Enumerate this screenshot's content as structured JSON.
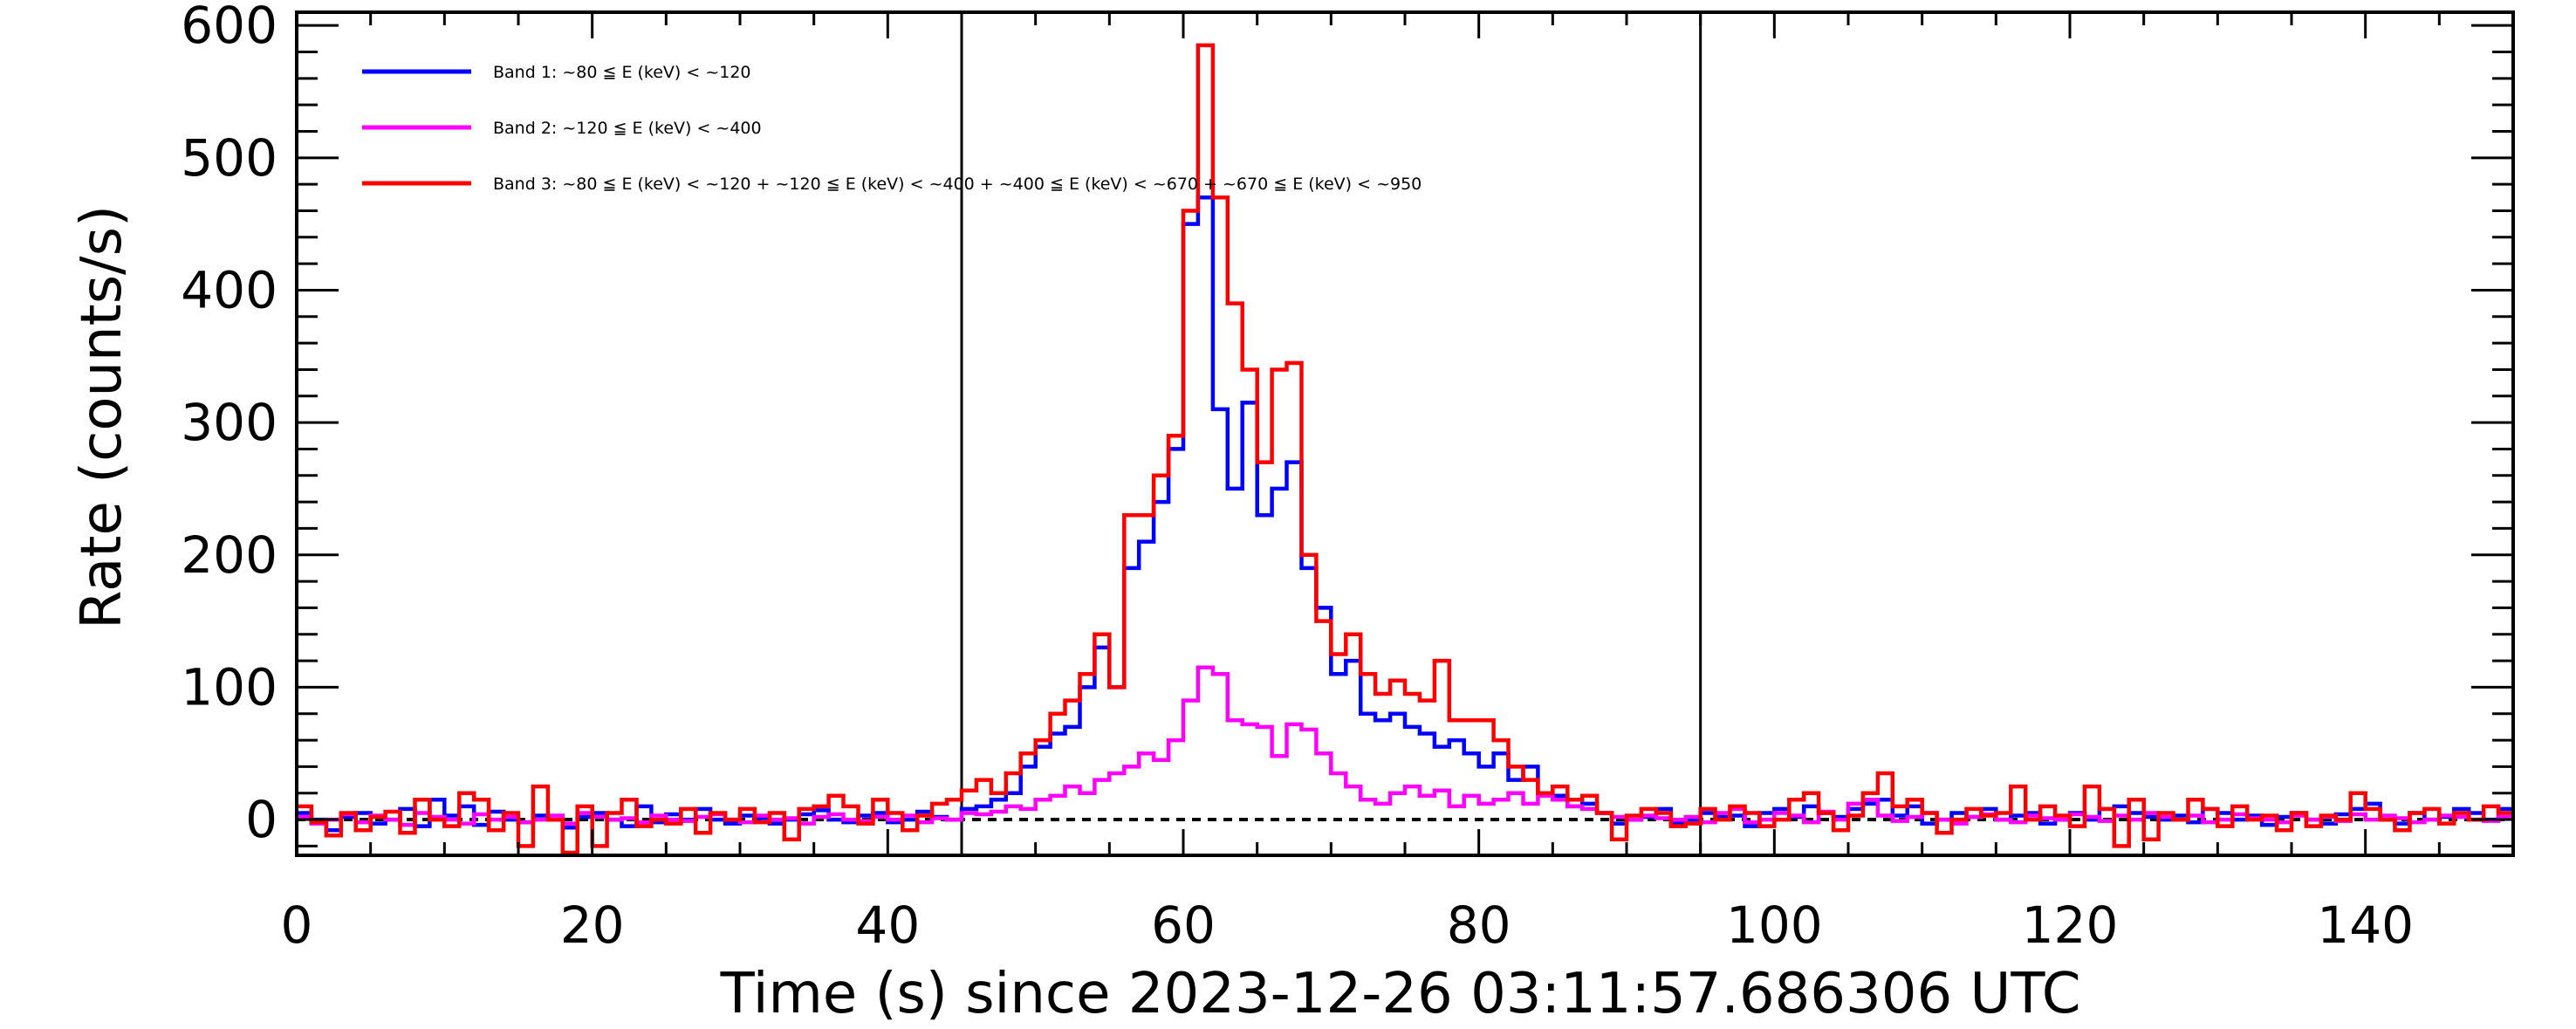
{
  "chart_data": {
    "type": "line",
    "style": "step",
    "title": "",
    "xlabel": "Time (s) since 2023-12-26 03:11:57.686306 UTC",
    "ylabel": "Rate (counts/s)",
    "xlim": [
      0,
      150
    ],
    "ylim": [
      -27,
      610
    ],
    "x_ticks": [
      0,
      20,
      40,
      60,
      80,
      100,
      120,
      140
    ],
    "y_ticks": [
      0,
      100,
      200,
      300,
      400,
      500,
      600
    ],
    "x_minor_step": 5,
    "y_minor_step": 20,
    "vertical_lines": [
      45,
      95
    ],
    "baseline": 0,
    "bin_width": 1,
    "x_start": 0,
    "legend_position": "top-left",
    "series": [
      {
        "name": "Band 1: ~80 ≦ E (keV) < ~120",
        "color": "#0000ff",
        "values": [
          5,
          0,
          -8,
          2,
          5,
          -3,
          0,
          8,
          -5,
          15,
          3,
          10,
          -4,
          6,
          0,
          -2,
          3,
          0,
          -6,
          2,
          5,
          0,
          -5,
          10,
          -2,
          4,
          0,
          8,
          0,
          -3,
          3,
          1,
          -3,
          0,
          4,
          7,
          0,
          -2,
          3,
          5,
          -2,
          0,
          6,
          2,
          0,
          8,
          10,
          15,
          20,
          40,
          55,
          65,
          70,
          100,
          130,
          100,
          190,
          210,
          240,
          280,
          450,
          470,
          310,
          250,
          315,
          230,
          250,
          270,
          190,
          160,
          110,
          120,
          80,
          75,
          80,
          70,
          65,
          55,
          60,
          50,
          40,
          50,
          30,
          40,
          20,
          18,
          10,
          12,
          5,
          -3,
          0,
          2,
          8,
          -3,
          0,
          5,
          2,
          3,
          -5,
          5,
          8,
          2,
          10,
          5,
          2,
          8,
          12,
          15,
          3,
          10,
          -3,
          0,
          5,
          2,
          8,
          0,
          3,
          5,
          -3,
          0,
          5,
          0,
          8,
          10,
          5,
          2,
          0,
          3,
          -2,
          8,
          5,
          0,
          3,
          -4,
          2,
          5,
          0,
          -3,
          4,
          8,
          12,
          0,
          -3,
          5,
          0,
          2,
          8,
          5,
          0,
          8
        ]
      },
      {
        "name": "Band 2: ~120 ≦ E (keV) < ~400",
        "color": "#ff00ff",
        "values": [
          2,
          -3,
          0,
          4,
          -2,
          3,
          0,
          -4,
          5,
          2,
          0,
          -3,
          4,
          0,
          2,
          -2,
          0,
          3,
          -3,
          5,
          2,
          0,
          1,
          -2,
          3,
          0,
          -1,
          2,
          4,
          0,
          -2,
          3,
          0,
          1,
          -3,
          2,
          4,
          0,
          -1,
          2,
          0,
          3,
          -2,
          1,
          0,
          5,
          4,
          6,
          10,
          8,
          15,
          18,
          25,
          20,
          30,
          35,
          40,
          50,
          45,
          60,
          90,
          115,
          110,
          75,
          72,
          70,
          48,
          72,
          68,
          50,
          35,
          25,
          15,
          12,
          20,
          25,
          18,
          22,
          10,
          18,
          12,
          15,
          20,
          12,
          18,
          15,
          10,
          8,
          5,
          2,
          0,
          3,
          1,
          0,
          2,
          -2,
          5,
          8,
          -2,
          0,
          5,
          3,
          -2,
          6,
          0,
          12,
          15,
          3,
          -1,
          2,
          5,
          0,
          -3,
          2,
          4,
          0,
          -2,
          3,
          1,
          0,
          4,
          2,
          -1,
          3,
          0,
          5,
          2,
          0,
          3,
          -2,
          0,
          4,
          1,
          0,
          -2,
          3,
          0,
          2,
          -1,
          4,
          0,
          3,
          1,
          -2,
          0,
          3,
          2,
          0,
          -1,
          2
        ]
      },
      {
        "name": "Band 3: ~80 ≦ E (keV) < ~120 + ~120 ≦ E (keV) < ~400 + ~400 ≦ E (keV) < ~670 + ~670 ≦ E (keV) < ~950",
        "color": "#ff0000",
        "values": [
          10,
          -2,
          -12,
          5,
          -8,
          2,
          6,
          -10,
          15,
          0,
          -5,
          20,
          15,
          -8,
          5,
          -20,
          25,
          0,
          -25,
          10,
          -20,
          5,
          15,
          -5,
          0,
          -3,
          8,
          -10,
          5,
          0,
          8,
          -2,
          5,
          -15,
          8,
          10,
          18,
          10,
          -3,
          15,
          5,
          -8,
          3,
          12,
          15,
          22,
          30,
          20,
          35,
          50,
          60,
          80,
          90,
          110,
          140,
          100,
          230,
          230,
          260,
          290,
          460,
          585,
          470,
          390,
          340,
          270,
          340,
          345,
          200,
          150,
          125,
          140,
          110,
          95,
          105,
          95,
          90,
          120,
          75,
          75,
          75,
          60,
          40,
          30,
          20,
          25,
          15,
          18,
          5,
          -15,
          3,
          8,
          5,
          -5,
          -3,
          8,
          0,
          10,
          5,
          -5,
          0,
          15,
          20,
          5,
          -8,
          3,
          20,
          35,
          10,
          15,
          5,
          -10,
          0,
          8,
          3,
          5,
          25,
          0,
          10,
          3,
          -5,
          25,
          8,
          -20,
          15,
          -15,
          5,
          0,
          15,
          8,
          -5,
          10,
          0,
          3,
          -8,
          5,
          -5,
          3,
          0,
          20,
          8,
          0,
          -8,
          5,
          8,
          -3,
          5,
          0,
          10,
          5
        ]
      }
    ]
  }
}
